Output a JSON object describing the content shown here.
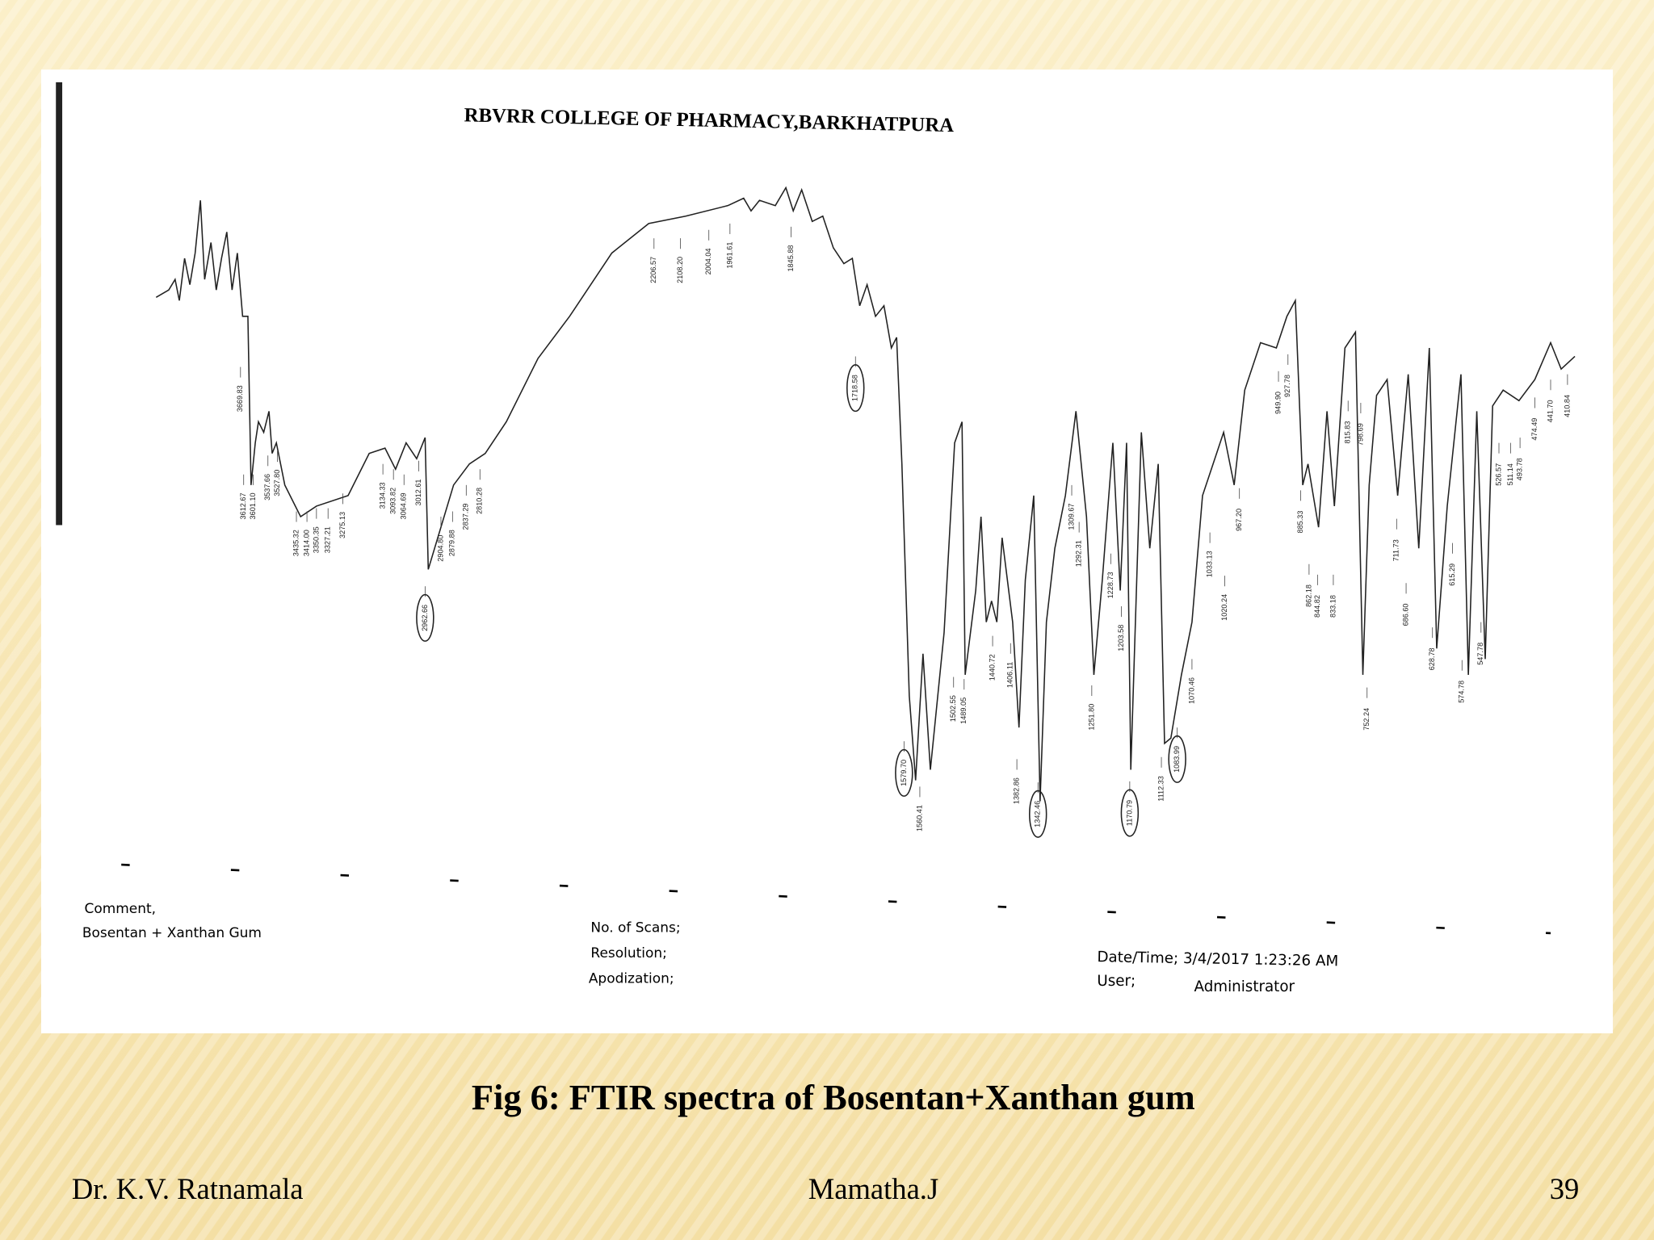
{
  "header": {
    "title": "RBVRR COLLEGE OF PHARMACY,BARKHATPURA"
  },
  "peaks": [
    "3669.83",
    "3612.67",
    "3601.10",
    "3537.66",
    "3527.80",
    "3435.32",
    "3414.00",
    "3350.35",
    "3327.21",
    "3275.13",
    "3134.33",
    "3093.82",
    "3064.69",
    "3012.61",
    "2962.66",
    "2904.80",
    "2879.88",
    "2837.29",
    "2810.28",
    "2206.57",
    "2108.20",
    "2004.04",
    "1961.61",
    "1845.88",
    "1718.58",
    "1579.70",
    "1560.41",
    "1502.55",
    "1489.05",
    "1440.72",
    "1406.11",
    "1382.86",
    "1342.46",
    "1309.67",
    "1292.31",
    "1251.80",
    "1228.73",
    "1203.58",
    "1170.79",
    "1112.33",
    "1083.99",
    "1070.46",
    "1033.13",
    "1020.24",
    "967.20",
    "949.90",
    "927.78",
    "885.33",
    "862.18",
    "844.82",
    "833.18",
    "815.83",
    "798.69",
    "752.24",
    "711.73",
    "686.60",
    "628.78",
    "615.29",
    "574.78",
    "547.78",
    "526.57",
    "511.14",
    "493.78",
    "474.49",
    "441.70",
    "410.84"
  ],
  "comment": {
    "label": "Comment,",
    "text": "Bosentan + Xanthan Gum"
  },
  "scan_info": [
    "No. of Scans;",
    "Resolution;",
    "Apodization;"
  ],
  "datetime": "Date/Time; 3/4/2017 1:23:26 AM",
  "user": {
    "label": "User;",
    "value": "Administrator"
  },
  "caption": "Fig 6: FTIR spectra of Bosentan+Xanthan gum",
  "footer": {
    "left": "Dr. K.V. Ratnamala",
    "center": "Mamatha.J",
    "page": "39"
  }
}
